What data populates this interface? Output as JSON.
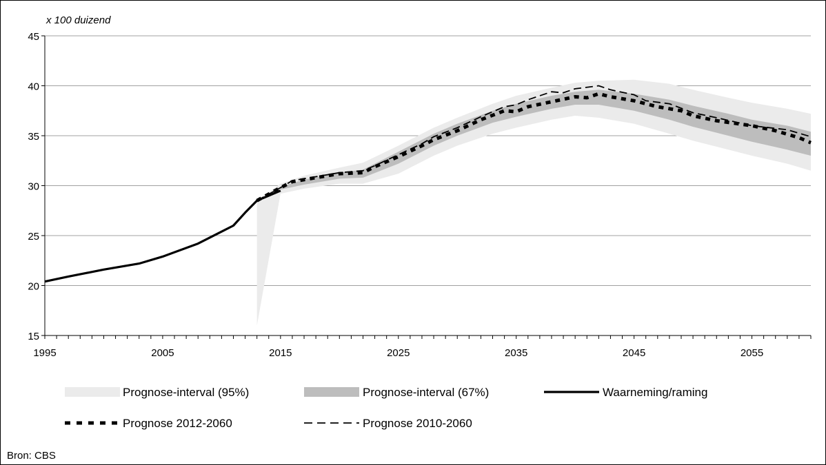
{
  "source_note": "Bron: CBS",
  "chart_data": {
    "type": "line",
    "title": "",
    "unit_label": "x 100 duizend",
    "xlabel": "",
    "ylabel": "",
    "xlim": [
      1995,
      2060
    ],
    "ylim": [
      15,
      45
    ],
    "x_ticks": [
      1995,
      2005,
      2015,
      2025,
      2035,
      2045,
      2055
    ],
    "y_ticks": [
      15,
      20,
      25,
      30,
      35,
      40,
      45
    ],
    "grid": "horizontal",
    "legend_placement": "bottom",
    "colors": {
      "band95": "#ebebeb",
      "band67": "#bdbdbd",
      "lines": "#000000",
      "grid": "#a0a0a0"
    },
    "legend": [
      {
        "label": "Prognose-interval (95%)",
        "style": "band95"
      },
      {
        "label": "Prognose-interval (67%)",
        "style": "band67"
      },
      {
        "label": "Waarneming/raming",
        "style": "solid"
      },
      {
        "label": "Prognose 2012-2060",
        "style": "dotted-thick"
      },
      {
        "label": "Prognose 2010-2060",
        "style": "dashed"
      }
    ],
    "bands": {
      "interval95": {
        "x": [
          2013,
          2015,
          2017,
          2020,
          2022,
          2025,
          2028,
          2030,
          2033,
          2035,
          2038,
          2040,
          2042,
          2045,
          2048,
          2050,
          2053,
          2055,
          2058,
          2060
        ],
        "lower": [
          16.0,
          29.2,
          29.7,
          30.2,
          30.2,
          31.2,
          33.0,
          34.0,
          35.2,
          35.8,
          36.6,
          37.0,
          36.8,
          36.2,
          35.2,
          34.5,
          33.6,
          33.0,
          32.2,
          31.5
        ],
        "upper": [
          28.5,
          30.2,
          31.0,
          31.8,
          32.3,
          34.0,
          35.8,
          36.8,
          38.2,
          39.0,
          39.8,
          40.3,
          40.5,
          40.6,
          40.2,
          39.6,
          38.8,
          38.3,
          37.7,
          37.2
        ]
      },
      "interval67": {
        "x": [
          2015,
          2017,
          2020,
          2022,
          2025,
          2028,
          2030,
          2033,
          2035,
          2038,
          2040,
          2042,
          2045,
          2048,
          2050,
          2053,
          2055,
          2058,
          2060
        ],
        "lower": [
          29.6,
          30.1,
          30.7,
          30.8,
          32.2,
          34.0,
          35.0,
          36.3,
          36.9,
          37.7,
          38.1,
          38.1,
          37.5,
          36.6,
          35.9,
          35.0,
          34.4,
          33.6,
          33.0
        ],
        "upper": [
          29.9,
          30.6,
          31.3,
          31.6,
          33.4,
          35.2,
          36.2,
          37.5,
          38.2,
          39.0,
          39.4,
          39.6,
          39.2,
          38.6,
          38.0,
          37.2,
          36.6,
          36.0,
          35.4
        ]
      }
    },
    "series": [
      {
        "name": "Waarneming/raming",
        "x": [
          1995,
          1997,
          2000,
          2003,
          2005,
          2008,
          2010,
          2011,
          2012,
          2013,
          2015
        ],
        "values": [
          20.4,
          20.9,
          21.6,
          22.2,
          22.9,
          24.2,
          25.4,
          26.0,
          27.3,
          28.5,
          29.5
        ]
      },
      {
        "name": "Prognose 2012-2060",
        "x": [
          2013,
          2015,
          2016,
          2018,
          2020,
          2022,
          2023,
          2025,
          2027,
          2028,
          2030,
          2032,
          2034,
          2035,
          2036,
          2038,
          2040,
          2041,
          2042,
          2043,
          2045,
          2047,
          2049,
          2050,
          2052,
          2055,
          2057,
          2059,
          2060
        ],
        "values": [
          28.5,
          29.8,
          30.4,
          30.8,
          31.2,
          31.3,
          31.9,
          32.9,
          34.0,
          34.6,
          35.5,
          36.6,
          37.5,
          37.4,
          37.9,
          38.4,
          38.9,
          38.8,
          39.2,
          38.9,
          38.5,
          37.9,
          37.5,
          37.0,
          36.5,
          36.0,
          35.5,
          34.8,
          34.3
        ]
      },
      {
        "name": "Prognose 2010-2060",
        "x": [
          2013,
          2015,
          2016,
          2018,
          2020,
          2022,
          2023,
          2025,
          2027,
          2028,
          2030,
          2032,
          2034,
          2035,
          2036,
          2038,
          2039,
          2040,
          2042,
          2043,
          2045,
          2046,
          2048,
          2050,
          2052,
          2055,
          2058,
          2060
        ],
        "values": [
          28.5,
          29.8,
          30.5,
          30.9,
          31.3,
          31.5,
          32.0,
          33.1,
          34.2,
          34.9,
          35.8,
          36.9,
          37.9,
          38.1,
          38.6,
          39.4,
          39.3,
          39.7,
          40.0,
          39.6,
          39.1,
          38.5,
          38.2,
          37.3,
          36.8,
          36.0,
          35.6,
          34.9
        ]
      }
    ]
  }
}
